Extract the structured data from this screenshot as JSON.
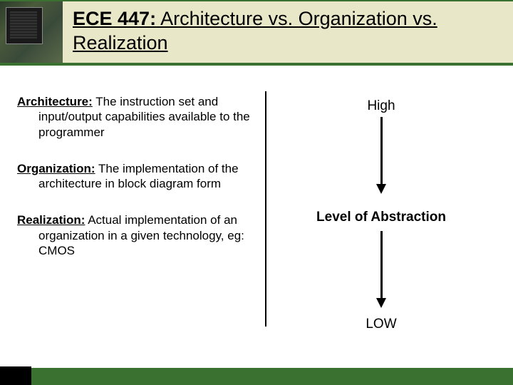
{
  "header": {
    "title_bold": "ECE 447:",
    "title_rest": " Architecture vs. Organization vs. Realization"
  },
  "definitions": [
    {
      "term": "Architecture:",
      "text": " The instruction set and input/output capabilities available to the programmer"
    },
    {
      "term": "Organization:",
      "text": " The implementation of the architecture in block diagram form"
    },
    {
      "term": "Realization:",
      "text": " Actual implementation of an organization in a given technology, eg: CMOS"
    }
  ],
  "abstraction": {
    "high": "High",
    "label": "Level of Abstraction",
    "low": "LOW"
  },
  "colors": {
    "header_bg": "#e8e8c8",
    "accent": "#3a7030",
    "text": "#000000",
    "bg": "#ffffff"
  },
  "typography": {
    "title_fontsize": 27,
    "body_fontsize": 17,
    "label_fontsize": 19
  }
}
